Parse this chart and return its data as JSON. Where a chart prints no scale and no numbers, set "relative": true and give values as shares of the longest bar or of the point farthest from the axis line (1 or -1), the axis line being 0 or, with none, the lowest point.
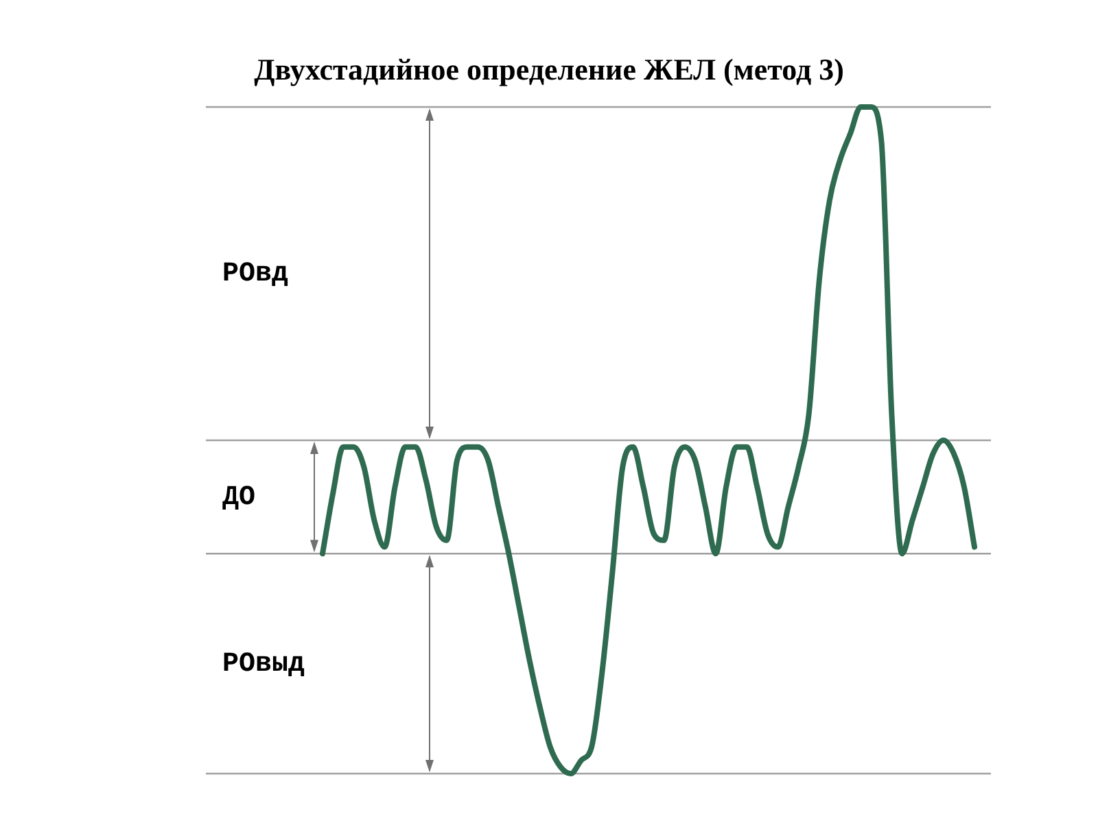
{
  "chart_data": {
    "type": "line",
    "title": "Двухстадийное определение ЖЕЛ (метод 3)",
    "relative": true,
    "legend": false,
    "marker": "none",
    "line_style": "solid",
    "categories": [
      null,
      null,
      null,
      null,
      null,
      null,
      null,
      null,
      null,
      null,
      null,
      null,
      null,
      null,
      null,
      null,
      null,
      null,
      null,
      null,
      null,
      null,
      null,
      null,
      null,
      null,
      null,
      null,
      null,
      null,
      null,
      null,
      null,
      null,
      null,
      null,
      null,
      null,
      null,
      null,
      null,
      null,
      null,
      null,
      null,
      null,
      null,
      null,
      null,
      null,
      null,
      null,
      null,
      null,
      null,
      null,
      null,
      null,
      null,
      null,
      null,
      null,
      null,
      null
    ],
    "series": [
      {
        "color": "#2f6b50",
        "values": [
          0.33,
          0.42,
          0.49,
          0.49,
          0.46,
          0.38,
          0.34,
          0.43,
          0.49,
          0.49,
          0.44,
          0.37,
          0.35,
          0.47,
          0.49,
          0.49,
          0.47,
          0.4,
          0.33,
          0.25,
          0.17,
          0.1,
          0.04,
          0.01,
          0,
          0.02,
          0.04,
          0.15,
          0.3,
          0.46,
          0.49,
          0.43,
          0.36,
          0.35,
          0.46,
          0.49,
          0.47,
          0.4,
          0.33,
          0.43,
          0.49,
          0.49,
          0.43,
          0.36,
          0.34,
          0.4,
          0.46,
          0.54,
          0.74,
          0.86,
          0.92,
          0.96,
          1,
          1,
          0.95,
          0.54,
          0.33,
          0.38,
          0.43,
          0.48,
          0.5,
          0.48,
          0.43,
          0.34
        ]
      }
    ],
    "ref_lines": [
      {
        "axis": "y",
        "value": 1,
        "color": "#a0a0a0"
      },
      {
        "axis": "y",
        "value": 0.5,
        "color": "#a0a0a0"
      },
      {
        "axis": "y",
        "value": 0.33,
        "color": "#a0a0a0"
      },
      {
        "axis": "y",
        "value": 0,
        "color": "#a0a0a0"
      }
    ],
    "annotations": [
      "РОвд",
      "ДО",
      "РОвыд"
    ]
  }
}
